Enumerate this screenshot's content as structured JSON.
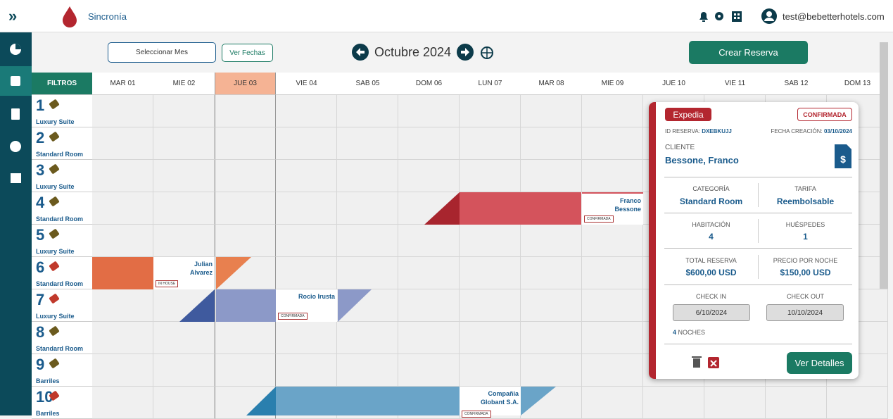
{
  "header": {
    "app_name": "Sincronía",
    "user": "test@bebetterhotels.com"
  },
  "toolbar": {
    "select_month": "Seleccionar Mes",
    "show_dates": "Ver Fechas",
    "month": "Octubre 2024",
    "create": "Crear Reserva"
  },
  "grid": {
    "filter": "FILTROS",
    "days": [
      "MAR 01",
      "MIE 02",
      "JUE 03",
      "VIE 04",
      "SAB 05",
      "DOM 06",
      "LUN 07",
      "MAR 08",
      "MIE 09",
      "JUE 10",
      "VIE 11",
      "SAB 12",
      "DOM 13"
    ],
    "rooms": [
      {
        "number": 1,
        "type": "Luxury Suite"
      },
      {
        "number": 2,
        "type": "Standard Room"
      },
      {
        "number": 3,
        "type": "Luxury Suite"
      },
      {
        "number": 4,
        "type": "Standard Room"
      },
      {
        "number": 5,
        "type": "Luxury Suite"
      },
      {
        "number": 6,
        "type": "Standard Room"
      },
      {
        "number": 7,
        "type": "Luxury Suite"
      },
      {
        "number": 8,
        "type": "Standard Room"
      },
      {
        "number": 9,
        "type": "Barriles"
      },
      {
        "number": 10,
        "type": "Barriles"
      }
    ]
  },
  "reservations": [
    {
      "guest": "Franco Bessone",
      "status": "CONFIRMADA"
    },
    {
      "guest": "Julian Alvarez",
      "status": "IN HOUSE"
    },
    {
      "guest": "Rocio Irusta",
      "status": "CONFIRMADA"
    },
    {
      "guest": "Compañia Globant S.A.",
      "status": "CONFIRMADA"
    }
  ],
  "popup": {
    "channel": "Expedia",
    "status": "CONFIRMADA",
    "id_label": "ID RESERVA:",
    "id": "DXEBKUJJ",
    "created_label": "FECHA CREACIÓN:",
    "created": "03/10/2024",
    "client_label": "CLIENTE",
    "client": "Bessone, Franco",
    "category_label": "CATEGORÍA",
    "category": "Standard Room",
    "rate_label": "TARIFA",
    "rate": "Reembolsable",
    "room_label": "HABITACIÓN",
    "room": 4,
    "guests_label": "HUÉSPEDES",
    "guests": 1,
    "total_label": "TOTAL RESERVA",
    "total": "$600,00 USD",
    "night_price_label": "PRECIO POR NOCHE",
    "night_price": "$150,00 USD",
    "checkin_label": "CHECK IN",
    "checkin": "6/10/2024",
    "checkout_label": "CHECK OUT",
    "checkout": "10/10/2024",
    "nights": 4,
    "nights_label": "NOCHES",
    "details": "Ver Detalles"
  }
}
